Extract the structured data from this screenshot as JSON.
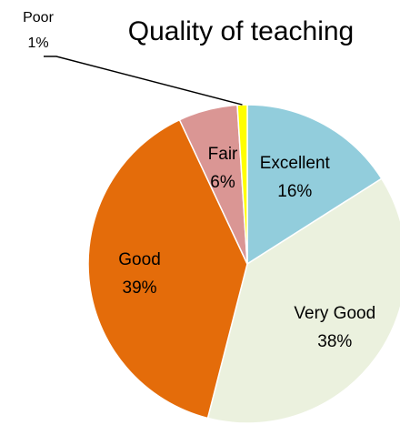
{
  "chart_data": {
    "type": "pie",
    "title": "Quality of teaching",
    "categories": [
      "Excellent",
      "Very Good",
      "Good",
      "Fair",
      "Poor"
    ],
    "values": [
      16,
      38,
      39,
      6,
      1
    ],
    "value_labels": [
      "16%",
      "38%",
      "39%",
      "6%",
      "1%"
    ],
    "colors": [
      "#92cddc",
      "#ebf1de",
      "#e46c0a",
      "#da9694",
      "#ffff00"
    ]
  }
}
